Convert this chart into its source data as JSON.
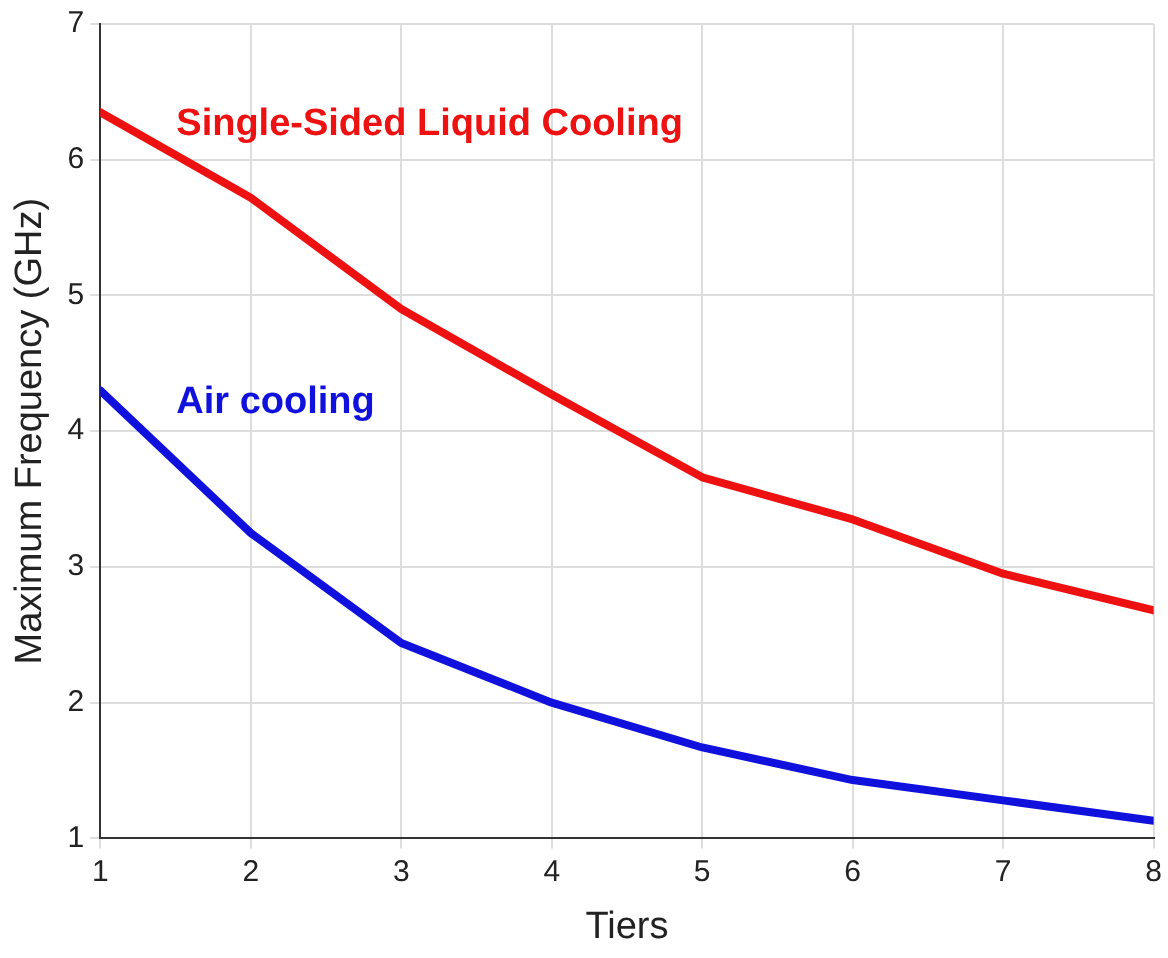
{
  "chart_data": {
    "type": "line",
    "xlabel": "Tiers",
    "ylabel": "Maximum Frequency (GHz)",
    "x": [
      1,
      2,
      3,
      4,
      5,
      6,
      7,
      8
    ],
    "series": [
      {
        "name": "Single-Sided Liquid Cooling",
        "color": "#ee1111",
        "values": [
          6.35,
          5.72,
          4.9,
          4.27,
          3.66,
          3.35,
          2.95,
          2.68
        ]
      },
      {
        "name": "Air cooling",
        "color": "#1111dd",
        "values": [
          4.3,
          3.25,
          2.44,
          2.0,
          1.67,
          1.43,
          1.28,
          1.13
        ]
      }
    ],
    "xlim": [
      1,
      8
    ],
    "xticks": [
      1,
      2,
      3,
      4,
      5,
      6,
      7,
      8
    ],
    "ylim": [
      1,
      7
    ],
    "yticks": [
      1,
      2,
      3,
      4,
      5,
      6,
      7
    ],
    "grid": true,
    "legend": false,
    "marker": "none",
    "line_style": "solid"
  }
}
